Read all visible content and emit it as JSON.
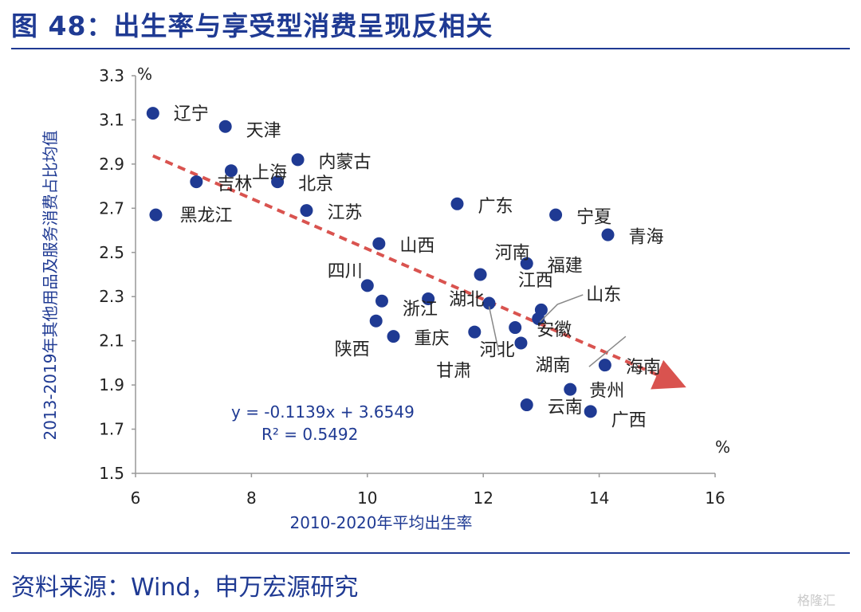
{
  "title": "图 48：出生率与享受型消费呈现反相关",
  "source": "资料来源：Wind，申万宏源研究",
  "watermark": "格隆汇",
  "colors": {
    "title": "#1F3A93",
    "points": "#1F3A93",
    "trend": "#D9534F",
    "axis": "#999999"
  },
  "chart_data": {
    "type": "scatter",
    "xlabel": "2010-2020年平均出生率",
    "ylabel": "2013-2019年其他用品及服务消费占比均值",
    "x_unit": "%",
    "y_unit": "%",
    "xlim": [
      6,
      16
    ],
    "ylim": [
      1.5,
      3.3
    ],
    "xticks": [
      "6",
      "8",
      "10",
      "12",
      "14",
      "16"
    ],
    "yticks": [
      "1.5",
      "1.7",
      "1.9",
      "2.1",
      "2.3",
      "2.5",
      "2.7",
      "2.9",
      "3.1",
      "3.3"
    ],
    "grid": false,
    "trendline": {
      "slope": -0.1139,
      "intercept": 3.6549,
      "equation": "y = -0.1139x + 3.6549",
      "r2": "R² = 0.5492"
    },
    "points": [
      {
        "name": "辽宁",
        "x": 6.3,
        "y": 3.13
      },
      {
        "name": "天津",
        "x": 7.55,
        "y": 3.07
      },
      {
        "name": "内蒙古",
        "x": 8.8,
        "y": 2.92
      },
      {
        "name": "上海",
        "x": 7.65,
        "y": 2.87
      },
      {
        "name": "吉林",
        "x": 7.05,
        "y": 2.82
      },
      {
        "name": "北京",
        "x": 8.45,
        "y": 2.82
      },
      {
        "name": "黑龙江",
        "x": 6.35,
        "y": 2.67
      },
      {
        "name": "江苏",
        "x": 8.95,
        "y": 2.69
      },
      {
        "name": "广东",
        "x": 11.55,
        "y": 2.72
      },
      {
        "name": "宁夏",
        "x": 13.25,
        "y": 2.67
      },
      {
        "name": "青海",
        "x": 14.15,
        "y": 2.58
      },
      {
        "name": "山西",
        "x": 10.2,
        "y": 2.54
      },
      {
        "name": "河南",
        "x": 11.95,
        "y": 2.4
      },
      {
        "name": "福建",
        "x": 12.75,
        "y": 2.45
      },
      {
        "name": "四川",
        "x": 10.0,
        "y": 2.35
      },
      {
        "name": "浙江",
        "x": 10.25,
        "y": 2.28
      },
      {
        "name": "湖北",
        "x": 11.05,
        "y": 2.29
      },
      {
        "name": "河北",
        "x": 12.1,
        "y": 2.27
      },
      {
        "name": "江西",
        "x": 13.0,
        "y": 2.24
      },
      {
        "name": "山东",
        "x": 12.95,
        "y": 2.2
      },
      {
        "name": "陕西",
        "x": 10.15,
        "y": 2.19
      },
      {
        "name": "重庆",
        "x": 10.45,
        "y": 2.12
      },
      {
        "name": "甘肃",
        "x": 11.85,
        "y": 2.14
      },
      {
        "name": "安徽",
        "x": 12.55,
        "y": 2.16
      },
      {
        "name": "湖南",
        "x": 12.65,
        "y": 2.09
      },
      {
        "name": "海南",
        "x": 14.1,
        "y": 1.99
      },
      {
        "name": "贵州",
        "x": 13.5,
        "y": 1.88
      },
      {
        "name": "云南",
        "x": 12.75,
        "y": 1.81
      },
      {
        "name": "广西",
        "x": 13.85,
        "y": 1.78
      }
    ]
  }
}
